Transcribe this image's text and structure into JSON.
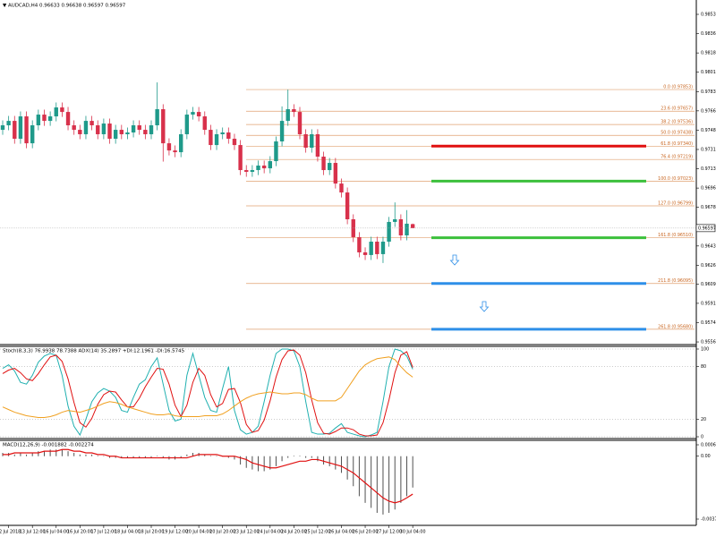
{
  "chart_data": [
    {
      "type": "candlestick",
      "title": "▼ AUDCAD,H4 0.96633 0.96638 0.96597 0.96597",
      "up_color": "#1f9a8a",
      "down_color": "#d8314b",
      "categories": [
        null,
        "12 Jul 2018",
        null,
        null,
        null,
        "13 Jul 12:00",
        null,
        null,
        null,
        "16 Jul 04:00",
        null,
        null,
        null,
        "16 Jul 20:00",
        null,
        null,
        null,
        "17 Jul 12:00",
        null,
        null,
        null,
        "18 Jul 04:00",
        null,
        null,
        null,
        "18 Jul 20:00",
        null,
        null,
        null,
        "19 Jul 12:00",
        null,
        null,
        null,
        "20 Jul 04:00",
        null,
        null,
        null,
        "20 Jul 20:00",
        null,
        null,
        null,
        "23 Jul 12:00",
        null,
        null,
        null,
        "24 Jul 04:00",
        null,
        null,
        null,
        "24 Jul 20:00",
        null,
        null,
        null,
        "25 Jul 12:00",
        null,
        null,
        null,
        "26 Jul 04:00",
        null,
        null,
        null,
        "26 Jul 20:00",
        null,
        null,
        null,
        "27 Jul 12:00",
        null,
        null,
        null,
        "30 Jul 04:00"
      ],
      "open": [
        0.97488,
        0.97529,
        0.97569,
        0.97407,
        0.9761,
        0.97366,
        0.97529,
        0.97626,
        0.97569,
        0.9761,
        0.97691,
        0.9765,
        0.97529,
        0.97488,
        0.97448,
        0.97569,
        0.97529,
        0.97448,
        0.97545,
        0.97407,
        0.97488,
        0.97448,
        0.97464,
        0.97529,
        0.97488,
        0.97448,
        0.97529,
        0.97675,
        0.97366,
        0.97301,
        0.97285,
        0.97448,
        0.97626,
        0.9765,
        0.9761,
        0.97488,
        0.9735,
        0.97448,
        0.97464,
        0.97407,
        0.9735,
        0.97123,
        0.97107,
        0.97123,
        0.97164,
        0.97139,
        0.97204,
        0.97383,
        0.97569,
        0.97675,
        0.9765,
        0.97448,
        0.97326,
        0.97448,
        0.97245,
        0.97123,
        0.97188,
        0.97001,
        0.9692,
        0.96677,
        0.96515,
        0.96377,
        0.96353,
        0.96474,
        0.96361,
        0.96474,
        0.96653,
        0.96677,
        0.96531,
        0.96633
      ],
      "high": [
        0.97574,
        0.97614,
        0.97614,
        0.97655,
        0.97655,
        0.97574,
        0.97671,
        0.97671,
        0.97655,
        0.97736,
        0.97736,
        0.97695,
        0.97574,
        0.97533,
        0.97614,
        0.97614,
        0.97574,
        0.9759,
        0.9759,
        0.97533,
        0.97533,
        0.97509,
        0.97574,
        0.97574,
        0.97533,
        0.97574,
        0.97918,
        0.9772,
        0.97411,
        0.97346,
        0.97493,
        0.97671,
        0.97695,
        0.97695,
        0.97655,
        0.97533,
        0.97493,
        0.97509,
        0.97509,
        0.97452,
        0.97395,
        0.97168,
        0.97168,
        0.97209,
        0.97209,
        0.97249,
        0.97428,
        0.977,
        0.97853,
        0.9772,
        0.97695,
        0.97493,
        0.97493,
        0.97493,
        0.9729,
        0.97233,
        0.97233,
        0.97046,
        0.96965,
        0.96722,
        0.9656,
        0.96422,
        0.96519,
        0.96519,
        0.96519,
        0.96698,
        0.9683,
        0.96722,
        0.9676,
        0.96638
      ],
      "low": [
        0.97443,
        0.97484,
        0.97362,
        0.97362,
        0.97321,
        0.97321,
        0.97484,
        0.97524,
        0.97524,
        0.97565,
        0.97605,
        0.97484,
        0.97443,
        0.97403,
        0.97403,
        0.97484,
        0.97403,
        0.97403,
        0.97362,
        0.97362,
        0.97403,
        0.97403,
        0.97419,
        0.97443,
        0.97403,
        0.97403,
        0.97484,
        0.972,
        0.97256,
        0.9724,
        0.9724,
        0.97403,
        0.97581,
        0.97565,
        0.97443,
        0.97305,
        0.97305,
        0.97403,
        0.97362,
        0.97305,
        0.97078,
        0.97062,
        0.97062,
        0.97078,
        0.97094,
        0.97094,
        0.97159,
        0.97338,
        0.97524,
        0.97605,
        0.97403,
        0.97281,
        0.97281,
        0.972,
        0.97078,
        0.97078,
        0.96956,
        0.96875,
        0.96632,
        0.9647,
        0.96332,
        0.96308,
        0.96308,
        0.96316,
        0.9628,
        0.96429,
        0.96608,
        0.96486,
        0.96486,
        0.96597
      ],
      "close": [
        0.97529,
        0.97569,
        0.97407,
        0.9761,
        0.97366,
        0.97529,
        0.97626,
        0.97569,
        0.9761,
        0.97691,
        0.9765,
        0.97529,
        0.97488,
        0.97448,
        0.97569,
        0.97529,
        0.97448,
        0.97545,
        0.97407,
        0.97488,
        0.97448,
        0.97464,
        0.97529,
        0.97488,
        0.97448,
        0.97529,
        0.97675,
        0.97366,
        0.97301,
        0.97285,
        0.97448,
        0.97626,
        0.9765,
        0.9761,
        0.97488,
        0.9735,
        0.97448,
        0.97464,
        0.97407,
        0.9735,
        0.97123,
        0.97107,
        0.97123,
        0.97164,
        0.97139,
        0.97204,
        0.97383,
        0.97569,
        0.97675,
        0.9765,
        0.97448,
        0.97326,
        0.97448,
        0.97245,
        0.97123,
        0.97188,
        0.97001,
        0.9692,
        0.96677,
        0.96515,
        0.96377,
        0.96353,
        0.96474,
        0.96361,
        0.96474,
        0.96653,
        0.96677,
        0.96531,
        0.96637,
        0.96597
      ],
      "ylim": [
        0.95541,
        0.98665
      ],
      "yticks": [
        0.98535,
        {
          "value": 0.9836,
          "label": "0.98360"
        },
        0.98185,
        {
          "value": 0.9801,
          "label": "0.98010"
        },
        0.97835,
        {
          "value": 0.9766,
          "label": "0.97660"
        },
        0.97485,
        {
          "value": 0.9731,
          "label": "0.97310"
        },
        0.97135,
        {
          "value": 0.9696,
          "label": "0.96960"
        },
        0.96785,
        0.96435,
        {
          "value": 0.9626,
          "label": "0.96260"
        },
        {
          "value": 0.9609,
          "label": "0.96090"
        },
        0.95915,
        {
          "value": 0.9574,
          "label": "0.95740"
        },
        0.95565
      ],
      "last_price": 0.96597,
      "fib_color": "#e0a070",
      "fib_levels": [
        {
          "label": "0.0 (0.97853)",
          "value": 0.97853
        },
        {
          "label": "23.6 (0.97657)",
          "value": 0.97657
        },
        {
          "label": "38.2 (0.97536)",
          "value": 0.97536
        },
        {
          "label": "50.0 (0.97438)",
          "value": 0.97438
        },
        {
          "label": "61.8 (0.97340)",
          "value": 0.9734
        },
        {
          "label": "76.4 (0.97219)",
          "value": 0.97219
        },
        {
          "label": "100.0 (0.97023)",
          "value": 0.97023
        },
        {
          "label": "127.0 (0.96799)",
          "value": 0.96799
        },
        {
          "label": "161.8 (0.96510)",
          "value": 0.9651
        },
        {
          "label": "211.8 (0.96095)",
          "value": 0.96095
        },
        {
          "label": "261.8 (0.95680)",
          "value": 0.9568
        }
      ],
      "price_lines": [
        {
          "value": 0.9734,
          "color": "#e01010"
        },
        {
          "value": 0.97023,
          "color": "#3cc03c"
        },
        {
          "value": 0.9651,
          "color": "#3cc03c"
        },
        {
          "value": 0.96095,
          "color": "#2e8fe8"
        },
        {
          "value": 0.9568,
          "color": "#2e8fe8"
        }
      ]
    },
    {
      "type": "line",
      "title": "Stoch(8,3,3) 76.9938 78.7388 ADX(14) 35.2897 +DI:12.1961 -DI:16.5745",
      "ylim": [
        0,
        100
      ],
      "yticks": [
        0,
        20,
        80,
        100
      ],
      "grid": true,
      "series": [
        {
          "color": "#20b0b0",
          "values": [
            78,
            82,
            75,
            62,
            60,
            70,
            85,
            92,
            95,
            93,
            70,
            35,
            12,
            2,
            20,
            40,
            50,
            55,
            52,
            45,
            30,
            28,
            45,
            60,
            65,
            80,
            90,
            60,
            30,
            18,
            20,
            70,
            95,
            70,
            45,
            30,
            28,
            55,
            80,
            30,
            8,
            3,
            5,
            12,
            40,
            70,
            95,
            100,
            100,
            98,
            80,
            40,
            5,
            3,
            3,
            4,
            10,
            15,
            5,
            3,
            1,
            0,
            2,
            5,
            40,
            80,
            100,
            98,
            92,
            77
          ]
        },
        {
          "color": "#e01010",
          "values": [
            72,
            76,
            78,
            73,
            66,
            64,
            72,
            82,
            91,
            93,
            86,
            66,
            39,
            16,
            11,
            21,
            37,
            48,
            52,
            51,
            42,
            34,
            34,
            44,
            57,
            68,
            78,
            77,
            60,
            36,
            23,
            36,
            62,
            78,
            70,
            48,
            34,
            38,
            54,
            55,
            39,
            14,
            5,
            7,
            19,
            41,
            68,
            88,
            98,
            99,
            93,
            73,
            42,
            16,
            4,
            3,
            6,
            10,
            10,
            8,
            3,
            1,
            1,
            2,
            16,
            42,
            73,
            93,
            97,
            79
          ]
        },
        {
          "color": "#f0a020",
          "values": [
            34,
            31,
            28,
            26,
            24,
            23,
            22,
            22,
            23,
            25,
            28,
            30,
            29,
            28,
            30,
            32,
            35,
            38,
            40,
            39,
            37,
            34,
            32,
            30,
            28,
            26,
            25,
            25,
            26,
            24,
            23,
            23,
            23,
            23,
            24,
            24,
            24,
            26,
            30,
            35,
            40,
            44,
            47,
            49,
            50,
            51,
            50,
            49,
            49,
            50,
            50,
            48,
            44,
            41,
            41,
            41,
            41,
            45,
            55,
            65,
            75,
            82,
            86,
            89,
            90,
            91,
            88,
            80,
            73,
            68
          ]
        }
      ]
    },
    {
      "type": "macd",
      "title": "MACD(12,26,9) -0.001882 -0.002274",
      "ylim": [
        -0.003774,
        0.000683
      ],
      "yticks": [
        0.000683,
        {
          "value": 0,
          "label": "0.00"
        },
        -0.003774
      ],
      "series": [
        {
          "kind": "bar",
          "color": "#505050",
          "values": [
            0.0002,
            0.0002,
            0.0001,
            0.0002,
            0.0001,
            0.0002,
            0.0003,
            0.0003,
            0.0004,
            0.0004,
            0.0004,
            0.0003,
            0.0002,
            0.0001,
            0.0001,
            0.0001,
            0,
            0,
            -0.0001,
            -0.0001,
            -0.0001,
            -0.0001,
            -0.0001,
            -0.0001,
            -0.0001,
            -0.0001,
            0,
            -0.0001,
            -0.0002,
            -0.0002,
            -0.0001,
            0.0001,
            0.0002,
            0.0002,
            0.0001,
            0,
            0,
            0,
            -0.0001,
            -0.0002,
            -0.0005,
            -0.0007,
            -0.0008,
            -0.0009,
            -0.0009,
            -0.0008,
            -0.0006,
            -0.0003,
            -0.0001,
            0,
            0,
            -0.0001,
            -0.0001,
            -0.0003,
            -0.0005,
            -0.0006,
            -0.0008,
            -0.001,
            -0.0014,
            -0.0018,
            -0.0024,
            -0.0028,
            -0.0031,
            -0.0034,
            -0.0035,
            -0.0034,
            -0.0032,
            -0.0028,
            -0.0024,
            -0.001882
          ]
        },
        {
          "kind": "line",
          "color": "#e01010",
          "values": [
            0.0001,
            0.0001,
            0.0002,
            0.0002,
            0.0002,
            0.0002,
            0.0002,
            0.0003,
            0.0003,
            0.0003,
            0.0004,
            0.0004,
            0.0003,
            0.0003,
            0.0002,
            0.0002,
            0.0001,
            0.0001,
            0,
            0,
            -0.0001,
            -0.0001,
            -0.0001,
            -0.0001,
            -0.0001,
            -0.0001,
            -0.0001,
            -0.0001,
            -0.0001,
            -0.0001,
            -0.0001,
            -0.0001,
            0,
            0.0001,
            0.0001,
            0.0001,
            0.0001,
            0,
            0,
            0,
            -0.0001,
            -0.0002,
            -0.0004,
            -0.0005,
            -0.0006,
            -0.0007,
            -0.0007,
            -0.0006,
            -0.0005,
            -0.0004,
            -0.0003,
            -0.0003,
            -0.0002,
            -0.0002,
            -0.0003,
            -0.0004,
            -0.0005,
            -0.0006,
            -0.0008,
            -0.001,
            -0.0013,
            -0.0016,
            -0.0019,
            -0.0022,
            -0.0025,
            -0.0027,
            -0.0028,
            -0.0027,
            -0.0025,
            -0.002274
          ]
        }
      ]
    }
  ]
}
